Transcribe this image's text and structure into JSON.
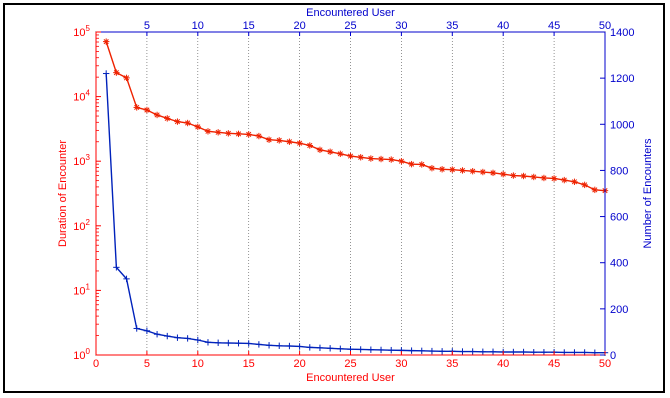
{
  "chart_data": {
    "type": "line",
    "title": "",
    "xlabel_bottom": "Encountered User",
    "xlabel_top": "Encountered User",
    "ylabel_left": "Duration of Encounter",
    "ylabel_right": "Number of Encounters",
    "xlim": [
      0,
      50
    ],
    "x_ticks": [
      0,
      5,
      10,
      15,
      20,
      25,
      30,
      35,
      40,
      45,
      50
    ],
    "x_ticks_top": [
      5,
      10,
      15,
      20,
      25,
      30,
      35,
      40,
      45,
      50
    ],
    "y_left_scale": "log",
    "y_left_lim": [
      1,
      100000
    ],
    "y_left_ticks": [
      {
        "base": "10",
        "exp": "0",
        "value": 1
      },
      {
        "base": "10",
        "exp": "1",
        "value": 10
      },
      {
        "base": "10",
        "exp": "2",
        "value": 100
      },
      {
        "base": "10",
        "exp": "3",
        "value": 1000
      },
      {
        "base": "10",
        "exp": "4",
        "value": 10000
      },
      {
        "base": "10",
        "exp": "5",
        "value": 100000
      }
    ],
    "y_right_lim": [
      0,
      1400
    ],
    "y_right_ticks": [
      0,
      200,
      400,
      600,
      800,
      1000,
      1200,
      1400
    ],
    "grid_x": true,
    "grid_y": false,
    "colors": {
      "left_axis": "#ff0000",
      "right_axis": "#0000cc",
      "duration_series": "#ee2200",
      "count_series": "#0022bb",
      "grid": "#666666"
    },
    "x": [
      1,
      2,
      3,
      4,
      5,
      6,
      7,
      8,
      9,
      10,
      11,
      12,
      13,
      14,
      15,
      16,
      17,
      18,
      19,
      20,
      21,
      22,
      23,
      24,
      25,
      26,
      27,
      28,
      29,
      30,
      31,
      32,
      33,
      34,
      35,
      36,
      37,
      38,
      39,
      40,
      41,
      42,
      43,
      44,
      45,
      46,
      47,
      48,
      49,
      50
    ],
    "series": [
      {
        "axis": "left",
        "marker": "star",
        "values": [
          71000,
          23500,
          19500,
          6800,
          6200,
          5200,
          4600,
          4100,
          3900,
          3400,
          2900,
          2800,
          2700,
          2650,
          2600,
          2450,
          2150,
          2100,
          2000,
          1900,
          1750,
          1500,
          1400,
          1300,
          1200,
          1150,
          1100,
          1080,
          1060,
          1000,
          900,
          890,
          780,
          750,
          740,
          720,
          700,
          680,
          660,
          630,
          600,
          590,
          570,
          550,
          540,
          510,
          480,
          430,
          360,
          350
        ]
      },
      {
        "axis": "right",
        "marker": "plus",
        "values": [
          1220,
          380,
          330,
          115,
          105,
          90,
          82,
          75,
          72,
          65,
          55,
          53,
          52,
          51,
          50,
          46,
          42,
          40,
          39,
          37,
          33,
          31,
          29,
          27,
          25,
          24,
          23,
          22,
          21,
          20,
          19,
          18,
          17,
          16,
          16,
          15,
          15,
          14,
          14,
          13,
          13,
          13,
          12,
          12,
          12,
          11,
          11,
          11,
          10,
          10
        ]
      }
    ]
  }
}
